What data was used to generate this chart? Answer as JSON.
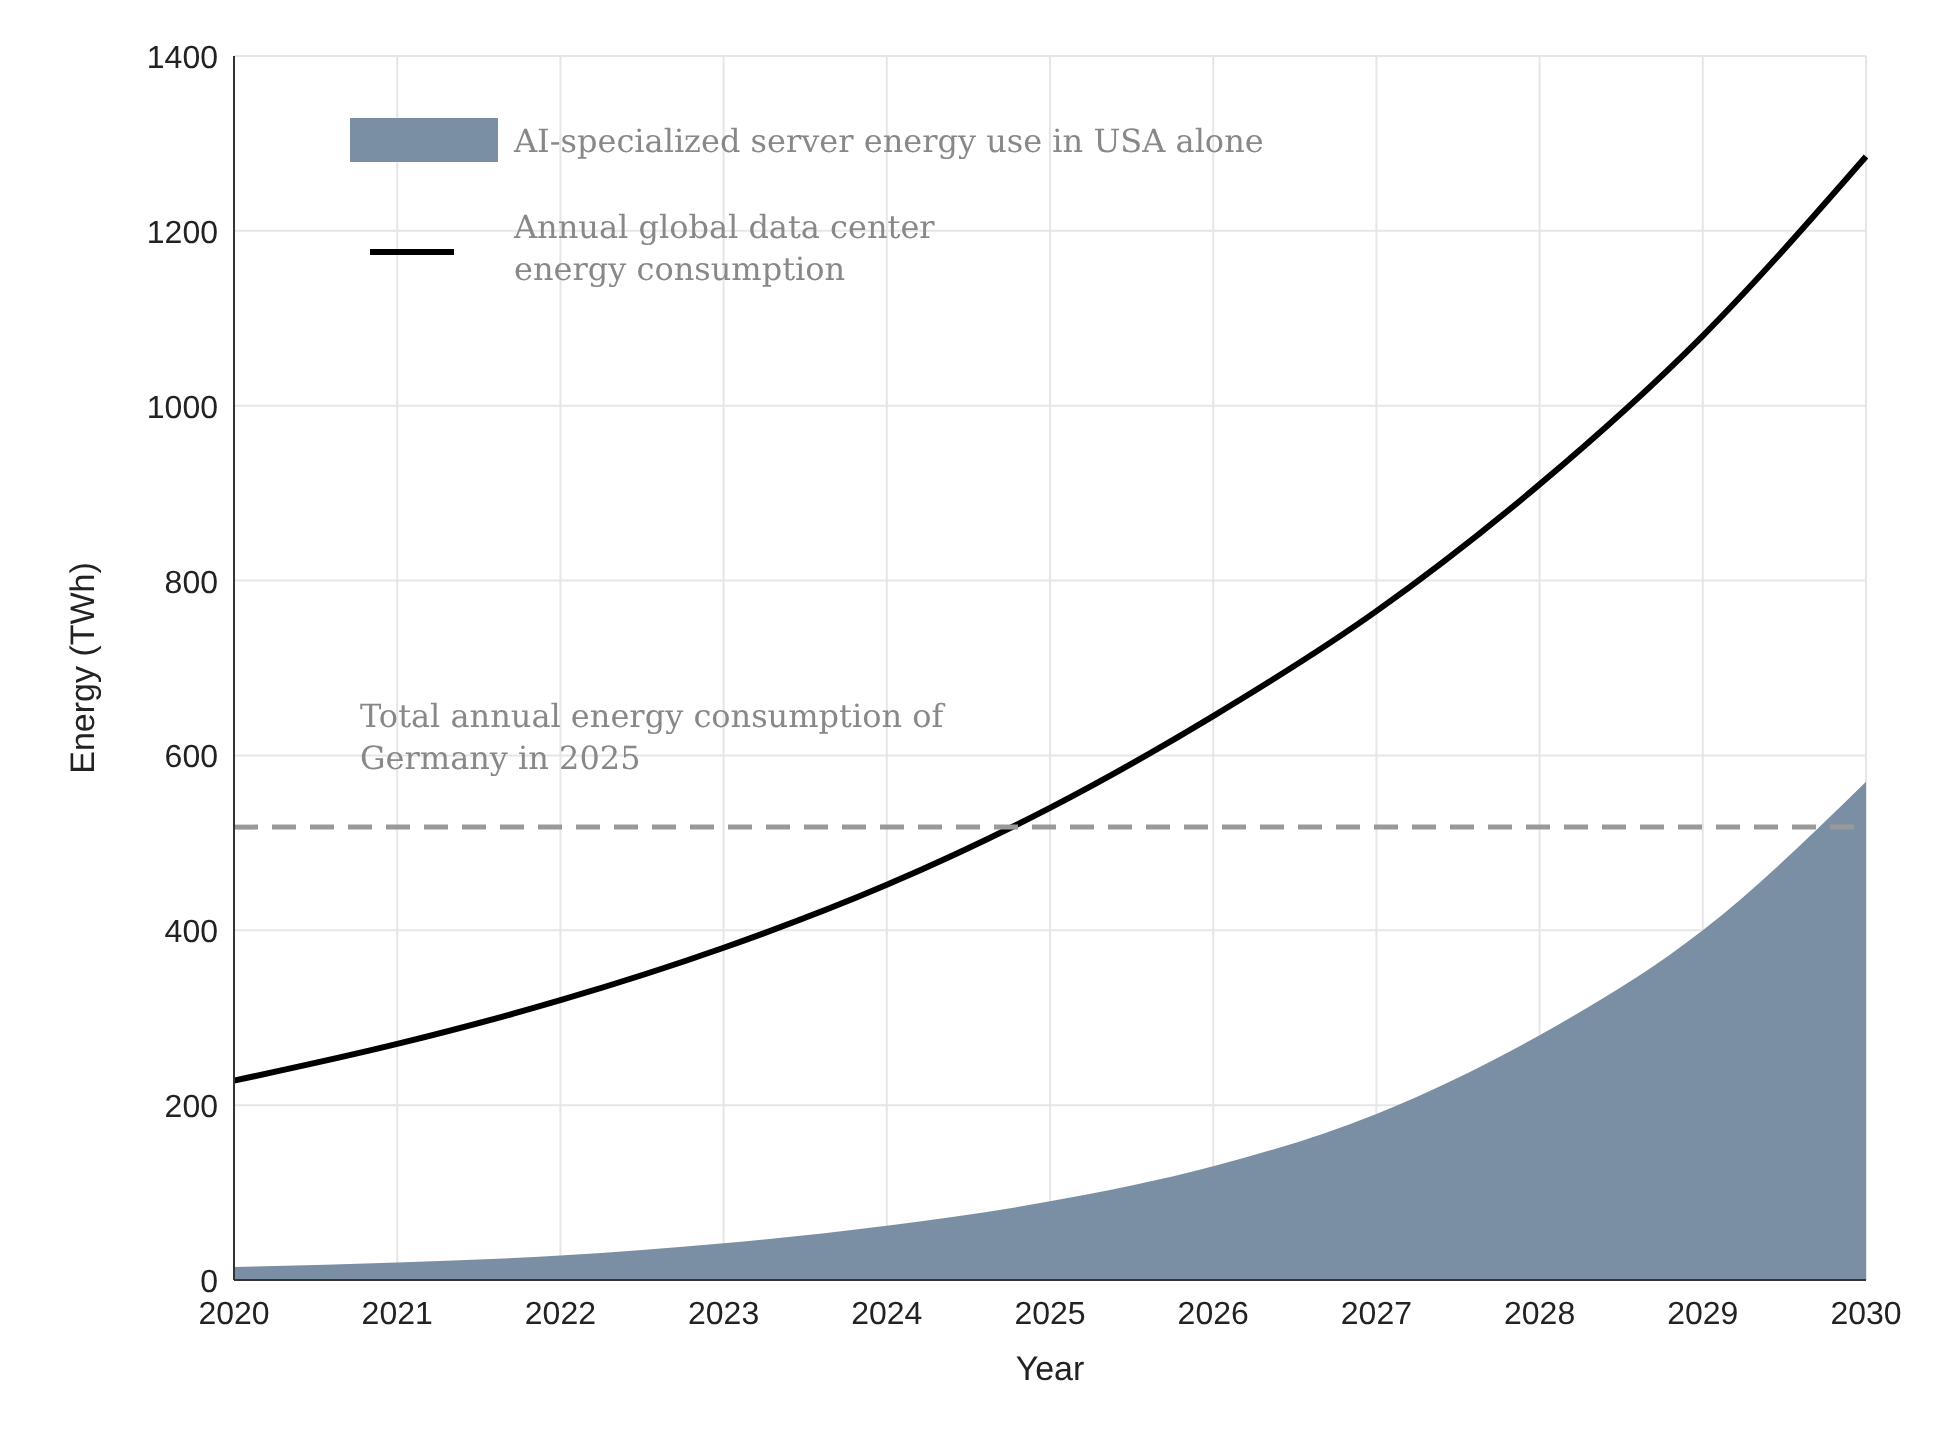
{
  "chart_data": {
    "type": "line",
    "xlabel": "Year",
    "ylabel": "Energy (TWh)",
    "x": [
      2020,
      2021,
      2022,
      2023,
      2024,
      2025,
      2026,
      2027,
      2028,
      2029,
      2030
    ],
    "series": [
      {
        "name": "AI-specialized server energy use in USA alone",
        "type": "area",
        "color": "#7a8fa3",
        "values": [
          15,
          20,
          28,
          42,
          62,
          90,
          130,
          190,
          280,
          400,
          570
        ]
      },
      {
        "name": "Annual global data center energy consumption",
        "color": "#000000",
        "values": [
          228,
          270,
          320,
          380,
          452,
          540,
          645,
          765,
          910,
          1080,
          1285
        ]
      }
    ],
    "xlim": [
      2020,
      2030
    ],
    "xticks": [
      2020,
      2021,
      2022,
      2023,
      2024,
      2025,
      2026,
      2027,
      2028,
      2029,
      2030
    ],
    "ylim": [
      0,
      1400
    ],
    "yticks": [
      0,
      200,
      400,
      600,
      800,
      1000,
      1200,
      1400
    ],
    "ref_lines": [
      {
        "axis": "y",
        "value": 518,
        "label": "Total annual energy consumption of Germany in 2025",
        "color": "#999999",
        "line_style": "dashed"
      }
    ],
    "grid": true,
    "legend": "top left",
    "line_style": "solid",
    "marker": "none"
  }
}
